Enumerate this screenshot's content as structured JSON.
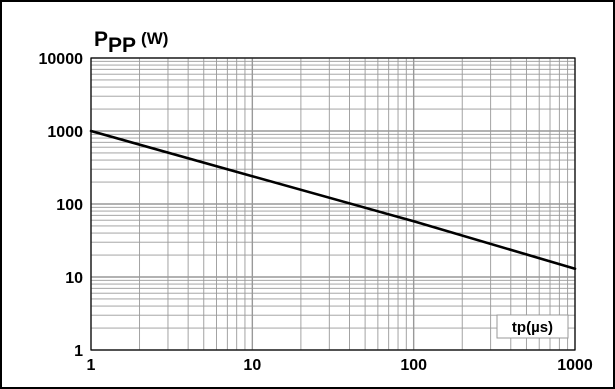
{
  "chart_data": {
    "type": "line",
    "title": "",
    "ylabel": "PPP (W)",
    "ylabel_parts": {
      "symbol": "P",
      "subscript": "PP",
      "unit": "(W)"
    },
    "xlabel": "tp(µs)",
    "x_scale": "log",
    "y_scale": "log",
    "xlim": [
      1,
      1000
    ],
    "ylim": [
      1,
      10000
    ],
    "x_ticks": [
      1,
      10,
      100,
      1000
    ],
    "x_tick_labels": [
      "1",
      "10",
      "100",
      "1000"
    ],
    "y_ticks": [
      1,
      10,
      100,
      1000,
      10000
    ],
    "y_tick_labels": [
      "1",
      "10",
      "100",
      "1000",
      "10000"
    ],
    "grid": true,
    "minor_grid": true,
    "series": [
      {
        "x": [
          1,
          10,
          100,
          1000
        ],
        "y": [
          1000,
          240,
          58,
          13
        ],
        "color": "#000000"
      }
    ]
  },
  "colors": {
    "line": "#000000",
    "grid": "#999999",
    "frame": "#000000",
    "background": "#ffffff"
  }
}
